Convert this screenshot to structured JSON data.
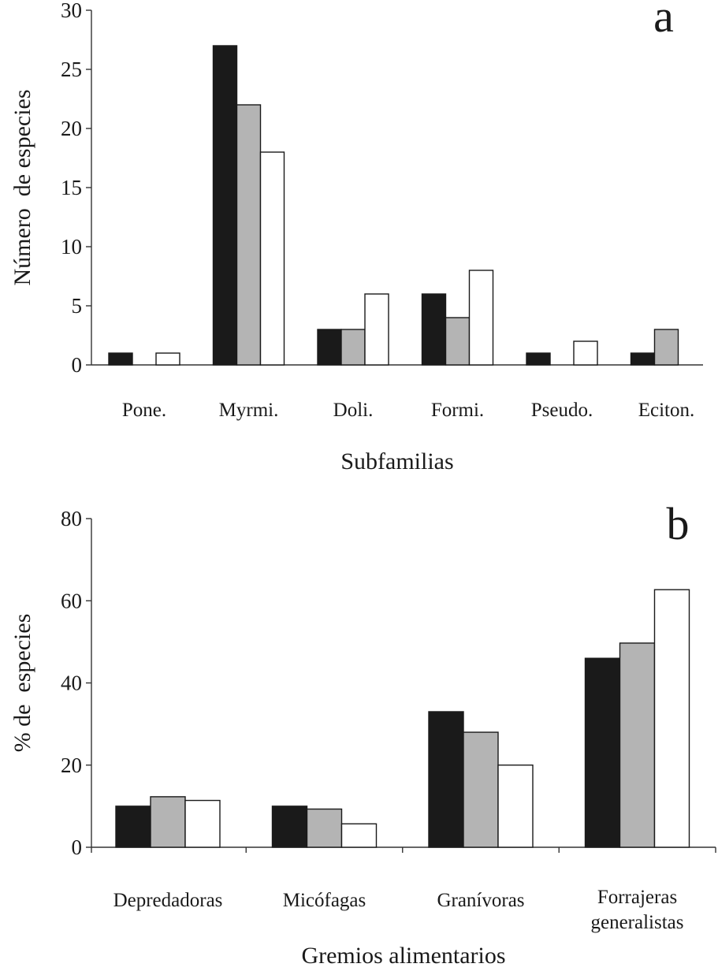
{
  "colors": {
    "series_fill": [
      "#1a1a1a",
      "#b4b4b4",
      "#ffffff"
    ],
    "ink": "#1a1a1a"
  },
  "chart_data": [
    {
      "type": "bar",
      "panel_letter": "a",
      "title": "",
      "xlabel": "Subfamilias",
      "ylabel": "Número  de especies",
      "ylim": [
        0,
        30
      ],
      "yticks": [
        0,
        5,
        10,
        15,
        20,
        25,
        30
      ],
      "categories": [
        "Pone.",
        "Myrmi.",
        "Doli.",
        "Formi.",
        "Pseudo.",
        "Eciton."
      ],
      "series": [
        {
          "values": [
            1,
            27,
            3,
            6,
            1,
            1
          ]
        },
        {
          "values": [
            0,
            22,
            3,
            4,
            0,
            3
          ]
        },
        {
          "values": [
            1,
            18,
            6,
            8,
            2,
            0
          ]
        }
      ],
      "grid": false,
      "legend": "none"
    },
    {
      "type": "bar",
      "panel_letter": "b",
      "title": "",
      "xlabel": "Gremios alimentarios",
      "ylabel": "% de  especies",
      "ylim": [
        0,
        80
      ],
      "yticks": [
        0,
        20,
        40,
        60,
        80
      ],
      "categories": [
        "Depredadoras",
        "Micófagas",
        "Granívoras",
        "Forrajeras\ngeneralistas"
      ],
      "series": [
        {
          "values": [
            10,
            10,
            33,
            46
          ]
        },
        {
          "values": [
            12.3,
            9.3,
            28,
            49.7
          ]
        },
        {
          "values": [
            11.4,
            5.7,
            20,
            62.7
          ]
        }
      ],
      "grid": false,
      "legend": "none"
    }
  ]
}
